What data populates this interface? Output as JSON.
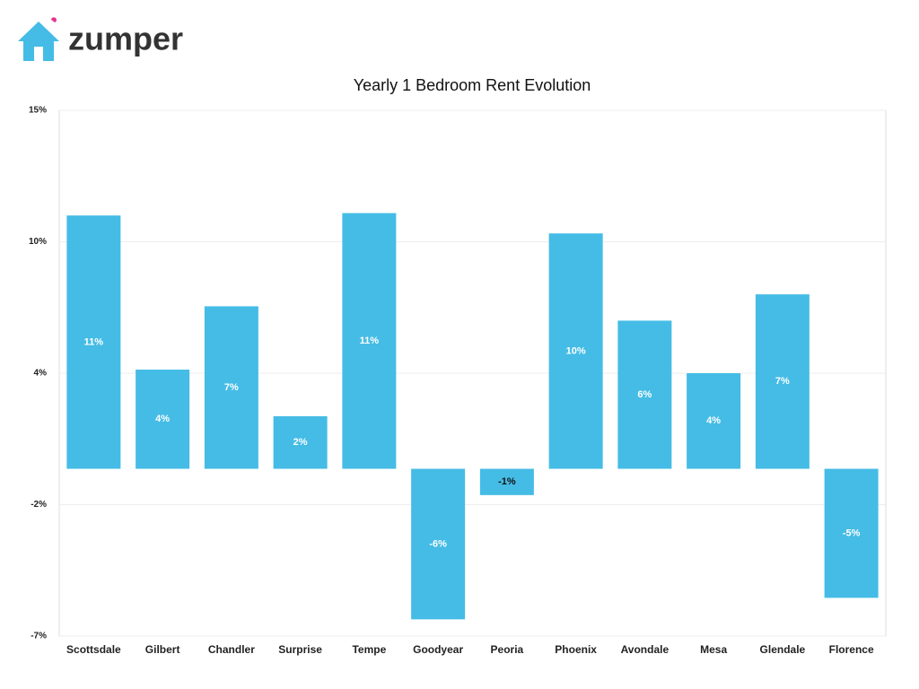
{
  "logo": "zumper",
  "chart_data": {
    "type": "bar",
    "title": "Yearly 1 Bedroom Rent Evolution",
    "categories": [
      "Scottsdale",
      "Gilbert",
      "Chandler",
      "Surprise",
      "Tempe",
      "Goodyear",
      "Peoria",
      "Phoenix",
      "Avondale",
      "Mesa",
      "Glendale",
      "Florence"
    ],
    "values": [
      10.6,
      4.15,
      6.8,
      2.2,
      10.7,
      -6.3,
      -1.1,
      9.85,
      6.2,
      4.0,
      7.3,
      -5.4
    ],
    "value_labels": [
      "11%",
      "4%",
      "7%",
      "2%",
      "11%",
      "-6%",
      "-1%",
      "10%",
      "6%",
      "4%",
      "7%",
      "-5%"
    ],
    "color": "#45bce5",
    "ylim": [
      -7,
      15
    ],
    "yticks": [
      {
        "value": -7,
        "label": "-7%"
      },
      {
        "value": -1.5,
        "label": "-2%"
      },
      {
        "value": 4,
        "label": "4%"
      },
      {
        "value": 9.5,
        "label": "10%"
      },
      {
        "value": 15,
        "label": "15%"
      }
    ],
    "grid": true
  }
}
